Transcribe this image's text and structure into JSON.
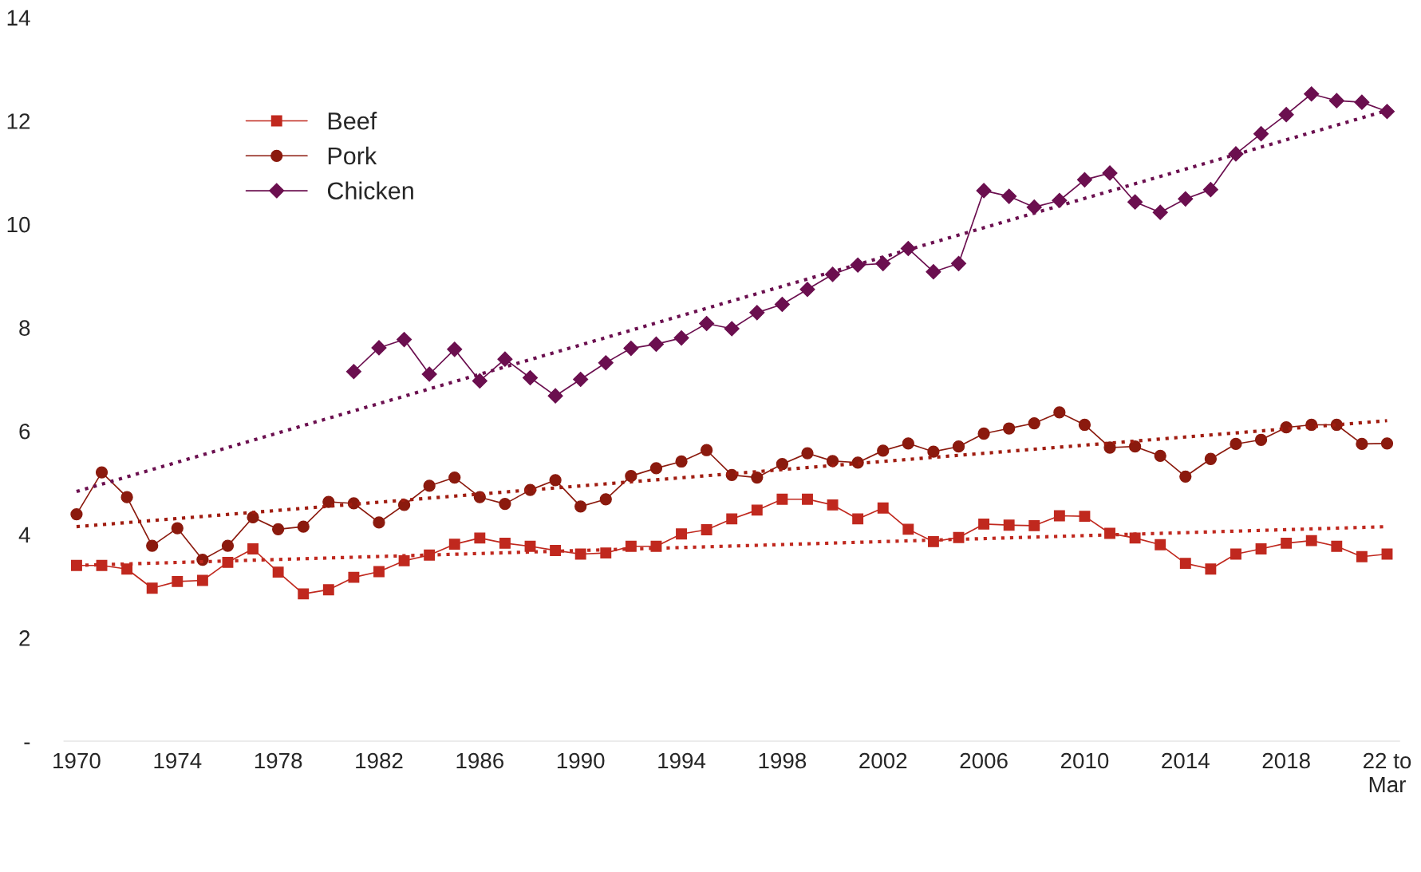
{
  "chart_data": {
    "type": "line",
    "categories": [
      "1970",
      null,
      null,
      null,
      "1974",
      null,
      null,
      null,
      "1978",
      null,
      null,
      null,
      "1982",
      null,
      null,
      null,
      "1986",
      null,
      null,
      null,
      "1990",
      null,
      null,
      null,
      "1994",
      null,
      null,
      null,
      "1998",
      null,
      null,
      null,
      "2002",
      null,
      null,
      null,
      "2006",
      null,
      null,
      null,
      "2010",
      null,
      null,
      null,
      "2014",
      null,
      null,
      null,
      "2018",
      null,
      null,
      null,
      "22 to\nMar"
    ],
    "series": [
      {
        "name": "Beef",
        "color": "#c0281e",
        "marker": "square",
        "values": [
          3.4,
          3.4,
          3.33,
          2.96,
          3.09,
          3.11,
          3.46,
          3.72,
          3.27,
          2.85,
          2.93,
          3.17,
          3.28,
          3.49,
          3.6,
          3.81,
          3.93,
          3.83,
          3.77,
          3.69,
          3.62,
          3.64,
          3.77,
          3.77,
          4.01,
          4.09,
          4.3,
          4.47,
          4.68,
          4.68,
          4.57,
          4.3,
          4.51,
          4.1,
          3.86,
          3.94,
          4.2,
          4.18,
          4.17,
          4.36,
          4.35,
          4.02,
          3.93,
          3.8,
          3.44,
          3.33,
          3.62,
          3.72,
          3.83,
          3.88,
          3.77,
          3.57,
          3.62
        ]
      },
      {
        "name": "Pork",
        "color": "#8b1a0e",
        "marker": "circle",
        "values": [
          4.39,
          5.2,
          4.72,
          3.78,
          4.12,
          3.51,
          3.78,
          4.33,
          4.1,
          4.15,
          4.63,
          4.6,
          4.23,
          4.57,
          4.94,
          5.1,
          4.72,
          4.59,
          4.86,
          5.05,
          4.54,
          4.68,
          5.13,
          5.28,
          5.41,
          5.63,
          5.15,
          5.1,
          5.36,
          5.57,
          5.42,
          5.39,
          5.62,
          5.76,
          5.6,
          5.7,
          5.95,
          6.05,
          6.15,
          6.36,
          6.12,
          5.68,
          5.7,
          5.52,
          5.12,
          5.46,
          5.75,
          5.83,
          6.07,
          6.12,
          6.12,
          5.75,
          5.76
        ]
      },
      {
        "name": "Chicken",
        "color": "#6b0f4f",
        "marker": "diamond",
        "values": [
          null,
          null,
          null,
          null,
          null,
          null,
          null,
          null,
          null,
          null,
          null,
          7.15,
          7.61,
          7.77,
          7.1,
          7.58,
          6.97,
          7.39,
          7.03,
          6.68,
          7.0,
          7.32,
          7.6,
          7.68,
          7.8,
          8.08,
          7.98,
          8.29,
          8.45,
          8.74,
          9.03,
          9.21,
          9.24,
          9.53,
          9.08,
          9.24,
          10.65,
          10.54,
          10.33,
          10.46,
          10.86,
          10.99,
          10.43,
          10.23,
          10.49,
          10.67,
          11.36,
          11.75,
          12.12,
          12.52,
          12.39,
          12.36,
          12.18
        ]
      },
      {
        "color": "#c0281e",
        "marker": "none",
        "line_style": "dotted",
        "values": [
          3.4,
          null,
          null,
          null,
          null,
          null,
          null,
          null,
          null,
          null,
          null,
          null,
          null,
          null,
          null,
          null,
          null,
          null,
          null,
          null,
          null,
          null,
          null,
          null,
          null,
          null,
          null,
          null,
          null,
          null,
          null,
          null,
          null,
          null,
          null,
          null,
          null,
          null,
          null,
          null,
          null,
          null,
          null,
          null,
          null,
          null,
          null,
          null,
          null,
          null,
          null,
          null,
          4.15
        ]
      },
      {
        "color": "#a01c10",
        "marker": "none",
        "line_style": "dotted",
        "values": [
          4.15,
          null,
          null,
          null,
          null,
          null,
          null,
          null,
          null,
          null,
          null,
          null,
          null,
          null,
          null,
          null,
          null,
          null,
          null,
          null,
          null,
          null,
          null,
          null,
          null,
          null,
          null,
          null,
          null,
          null,
          null,
          null,
          null,
          null,
          null,
          null,
          null,
          null,
          null,
          null,
          null,
          null,
          null,
          null,
          null,
          null,
          null,
          null,
          null,
          null,
          null,
          null,
          6.2
        ]
      },
      {
        "color": "#6b0f4f",
        "marker": "none",
        "line_style": "dotted",
        "values": [
          4.83,
          null,
          null,
          null,
          null,
          null,
          null,
          null,
          null,
          null,
          null,
          null,
          null,
          null,
          null,
          null,
          null,
          null,
          null,
          null,
          null,
          null,
          null,
          null,
          null,
          null,
          null,
          null,
          null,
          null,
          null,
          null,
          null,
          null,
          null,
          null,
          null,
          null,
          null,
          null,
          null,
          null,
          null,
          null,
          null,
          null,
          null,
          null,
          null,
          null,
          null,
          null,
          12.2
        ]
      }
    ],
    "ylim": [
      0,
      14
    ],
    "yticks": [
      {
        "value": 0,
        "label": "-"
      },
      2,
      4,
      6,
      8,
      10,
      12,
      14
    ],
    "grid": false,
    "legend": "top left"
  }
}
